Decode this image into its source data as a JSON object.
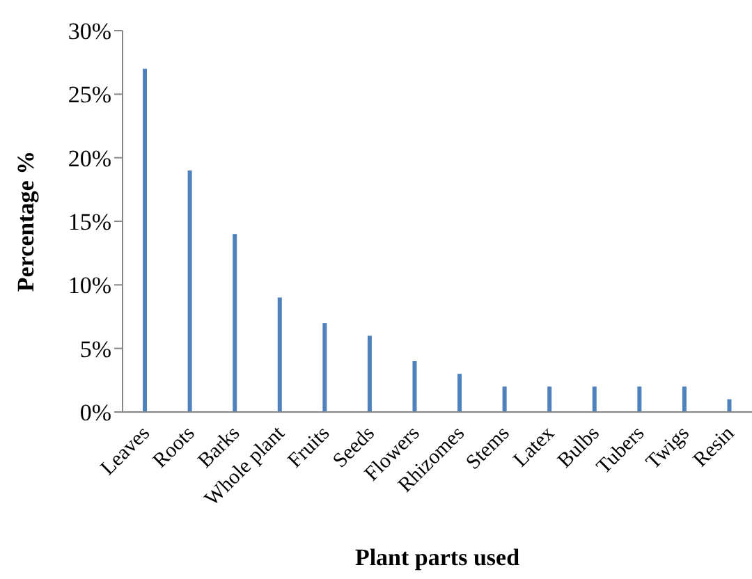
{
  "chart_data": {
    "type": "bar",
    "xlabel": "Plant parts used",
    "ylabel": "Percentage %",
    "categories": [
      "Leaves",
      "Roots",
      "Barks",
      "Whole plant",
      "Fruits",
      "Seeds",
      "Flowers",
      "Rhizomes",
      "Stems",
      "Latex",
      "Bulbs",
      "Tubers",
      "Twigs",
      "Resin"
    ],
    "values": [
      27,
      19,
      14,
      9,
      7,
      6,
      4,
      3,
      2,
      2,
      2,
      2,
      2,
      1
    ],
    "color": "#4f81bd",
    "ylim": [
      0,
      30
    ],
    "yticks": [
      {
        "value": 0,
        "label": "0%"
      },
      {
        "value": 5,
        "label": "5%"
      },
      {
        "value": 10,
        "label": "10%"
      },
      {
        "value": 15,
        "label": "15%"
      },
      {
        "value": 20,
        "label": "20%"
      },
      {
        "value": 25,
        "label": "25%"
      },
      {
        "value": 30,
        "label": "30%"
      }
    ],
    "grid": false
  }
}
